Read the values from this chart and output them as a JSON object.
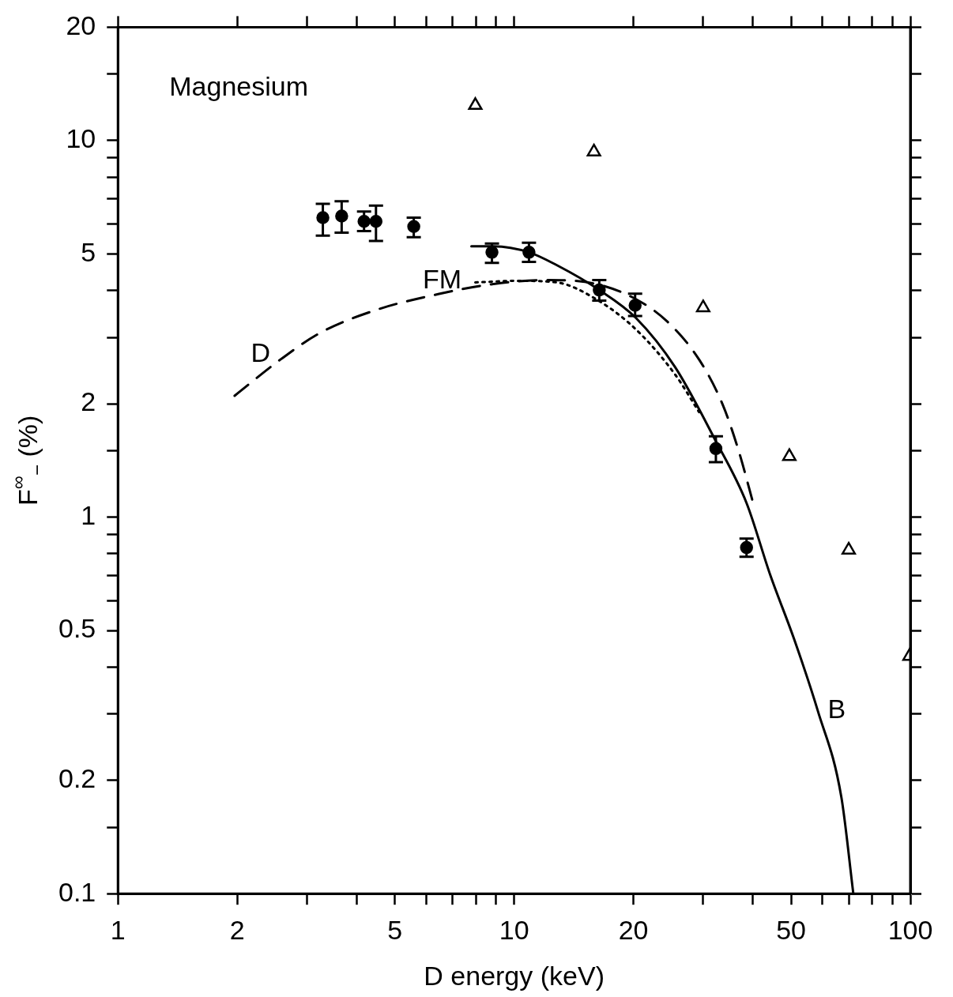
{
  "chart_data": {
    "type": "scatter",
    "title": "Magnesium",
    "xlabel": "D energy (keV)",
    "ylabel": "F$^{∞}$$_{−}$ (%)",
    "log": "xy",
    "grid": false,
    "legend": false,
    "xlim": [
      1,
      100
    ],
    "ylim": [
      0.1,
      20
    ],
    "xticks": [
      1,
      {
        "value": 2,
        "label": "2"
      },
      {
        "value": 3,
        "label": null
      },
      {
        "value": 4,
        "label": null
      },
      {
        "value": 5,
        "label": "5"
      },
      {
        "value": 6,
        "label": null
      },
      {
        "value": 7,
        "label": null
      },
      {
        "value": 8,
        "label": null
      },
      {
        "value": 9,
        "label": null
      },
      10,
      {
        "value": 20,
        "label": "20"
      },
      {
        "value": 30,
        "label": null
      },
      {
        "value": 40,
        "label": null
      },
      {
        "value": 50,
        "label": "50"
      },
      {
        "value": 60,
        "label": null
      },
      {
        "value": 70,
        "label": null
      },
      {
        "value": 80,
        "label": null
      },
      {
        "value": 90,
        "label": null
      },
      100
    ],
    "yticks": [
      0.1,
      {
        "value": 0.15,
        "label": null
      },
      0.2,
      {
        "value": 0.3,
        "label": null
      },
      {
        "value": 0.4,
        "label": null
      },
      0.5,
      {
        "value": 0.6,
        "label": null
      },
      {
        "value": 0.7,
        "label": null
      },
      {
        "value": 0.8,
        "label": null
      },
      {
        "value": 0.9,
        "label": null
      },
      1,
      {
        "value": 1.5,
        "label": null
      },
      2,
      {
        "value": 3,
        "label": null
      },
      {
        "value": 4,
        "label": null
      },
      5,
      {
        "value": 6,
        "label": null
      },
      {
        "value": 7,
        "label": null
      },
      {
        "value": 8,
        "label": null
      },
      {
        "value": 9,
        "label": null
      },
      10,
      {
        "value": 15,
        "label": null
      },
      20
    ],
    "series": [
      {
        "color": "#000000",
        "marker": "circle",
        "x": [
          3.29,
          3.67,
          4.18,
          4.48,
          5.58,
          8.79,
          10.9,
          16.4,
          20.2,
          32.3,
          38.6
        ],
        "values": [
          6.24,
          6.3,
          6.1,
          6.1,
          5.91,
          5.05,
          5.05,
          4.01,
          3.65,
          1.52,
          0.83
        ],
        "errors": [
          [
            5.59,
            6.79
          ],
          [
            5.69,
            6.9
          ],
          [
            5.75,
            6.48
          ],
          [
            5.41,
            6.72
          ],
          [
            5.54,
            6.24
          ],
          [
            4.73,
            5.33
          ],
          [
            4.76,
            5.35
          ],
          [
            3.76,
            4.26
          ],
          [
            3.42,
            3.92
          ],
          [
            1.4,
            1.64
          ],
          [
            0.785,
            0.877
          ]
        ]
      },
      {
        "color": "#000000",
        "marker": "triangle",
        "x": [
          7.98,
          15.9,
          30,
          49.5,
          69.9,
          99.5
        ],
        "values": [
          12.4,
          9.33,
          3.6,
          1.45,
          0.818,
          0.427
        ]
      },
      {
        "type": "line",
        "name": "D",
        "color": "#000000",
        "marker": "none",
        "line_style": "dashed",
        "x": [
          1.97,
          2.57,
          3.23,
          4.45,
          6.43,
          8.87,
          12.2,
          16.1,
          20.3,
          24.4,
          29.3,
          33.6,
          36.8,
          40.3
        ],
        "values": [
          2.1,
          2.62,
          3.08,
          3.54,
          3.91,
          4.16,
          4.26,
          4.16,
          3.79,
          3.3,
          2.62,
          1.99,
          1.51,
          1.07
        ]
      },
      {
        "type": "line",
        "name": "FM",
        "color": "#000000",
        "marker": "none",
        "line_style": "dotted",
        "x": [
          7.98,
          10.2,
          12.8,
          16.1,
          20.3,
          25.5,
          29.3
        ],
        "values": [
          4.2,
          4.24,
          4.2,
          3.79,
          3.15,
          2.39,
          1.9
        ]
      },
      {
        "type": "line",
        "name": "B",
        "color": "#000000",
        "marker": "none",
        "line_style": "solid",
        "x": [
          7.8,
          8.87,
          10.9,
          12.8,
          16.4,
          20.3,
          25.5,
          32.1,
          38.6,
          44.3,
          50.9,
          58.4,
          67,
          71.8
        ],
        "values": [
          5.24,
          5.24,
          5.05,
          4.67,
          4.01,
          3.38,
          2.5,
          1.61,
          1.09,
          0.702,
          0.474,
          0.306,
          0.18,
          0.1
        ]
      }
    ]
  }
}
